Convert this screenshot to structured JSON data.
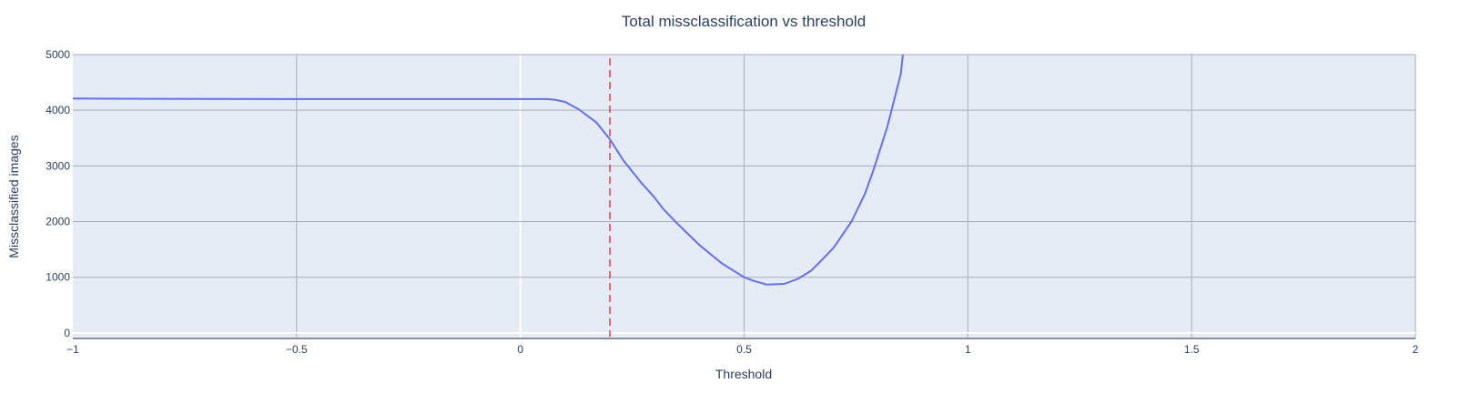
{
  "chart_data": {
    "type": "line",
    "title": "Total missclassification vs threshold",
    "xlabel": "Threshold",
    "ylabel": "Missclassified images",
    "xlim": [
      -1,
      2
    ],
    "ylim": [
      -100,
      5000
    ],
    "x_ticks": [
      -1,
      -0.5,
      0,
      0.5,
      1,
      1.5,
      2
    ],
    "x_tick_labels": [
      "−1",
      "−0.5",
      "0",
      "0.5",
      "1",
      "1.5",
      "2"
    ],
    "y_ticks": [
      0,
      1000,
      2000,
      3000,
      4000,
      5000
    ],
    "y_tick_labels": [
      "0",
      "1000",
      "2000",
      "3000",
      "4000",
      "5000"
    ],
    "grid": true,
    "series": [
      {
        "color": "#636efa",
        "x": [
          -1,
          -0.8,
          -0.5,
          -0.2,
          0,
          0.06,
          0.08,
          0.1,
          0.13,
          0.17,
          0.2,
          0.23,
          0.27,
          0.3,
          0.32,
          0.35,
          0.4,
          0.45,
          0.5,
          0.52,
          0.55,
          0.59,
          0.62,
          0.65,
          0.67,
          0.7,
          0.74,
          0.77,
          0.79,
          0.82,
          0.85,
          0.855
        ],
        "y": [
          4210,
          4205,
          4200,
          4200,
          4200,
          4200,
          4185,
          4150,
          4020,
          3780,
          3480,
          3100,
          2700,
          2430,
          2220,
          1970,
          1580,
          1250,
          1000,
          940,
          870,
          880,
          970,
          1120,
          1280,
          1530,
          2000,
          2500,
          2950,
          3700,
          4650,
          5000
        ]
      }
    ],
    "threshold_line": {
      "x": 0.2,
      "color": "#d62728",
      "style": "dashed"
    }
  },
  "colors": {
    "plot_background": "#e5ecf6",
    "grid": "#a9adbd",
    "zero_line": "#ffffff",
    "axis_line": "#8f8f9c",
    "text": "#2a3f5f"
  }
}
